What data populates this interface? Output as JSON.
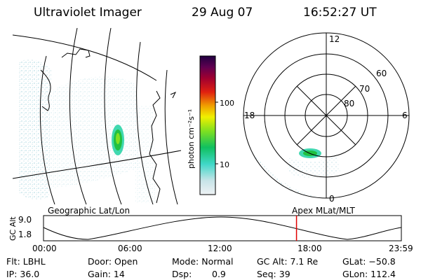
{
  "header": {
    "title": "Ultraviolet Imager",
    "date": "29 Aug 07",
    "time": "16:52:27 UT"
  },
  "colorbar": {
    "label": "photon cm⁻²s⁻¹",
    "tick_labels": [
      "100",
      "10"
    ],
    "scale": "log",
    "colors": [
      "#e8eef0",
      "#c8e4e8",
      "#40d8c8",
      "#10c060",
      "#80e020",
      "#f0f000",
      "#f0a000",
      "#e02010",
      "#a00030",
      "#600050",
      "#200040"
    ]
  },
  "polar_plot": {
    "mlt_labels": [
      "12",
      "18",
      "6",
      "0"
    ],
    "mlat_labels": [
      "60",
      "70",
      "80"
    ]
  },
  "timeline": {
    "left_label": "Geographic Lat/Lon",
    "right_label": "Apex MLat/MLT",
    "axis_label": "GC Alt",
    "y_ticks": [
      "9.0",
      "1.8"
    ],
    "x_ticks": [
      "00:00",
      "06:00",
      "12:00",
      "18:00",
      "23:59"
    ],
    "current_time_fraction": 0.707,
    "marker_color": "#e00000"
  },
  "info": {
    "flt": "Flt: LBHL",
    "door": "Door: Open",
    "mode": "Mode: Normal",
    "gc_alt": "GC Alt: 7.1 Re",
    "glat": "GLat: −50.8",
    "ip": "IP: 36.0",
    "gain": "Gain: 14",
    "dsp_label": "Dsp:",
    "dsp_value": "0.9",
    "seq": "Seq: 39",
    "glon": "GLon: 112.4"
  }
}
